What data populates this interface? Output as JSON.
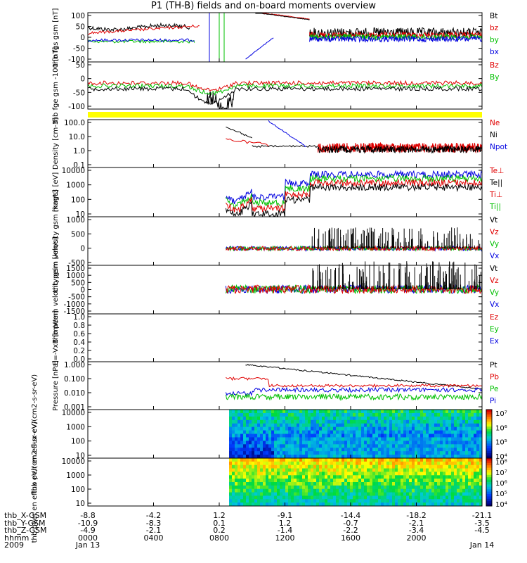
{
  "title": "P1 (TH-B) fields and on-board moments overview",
  "colors": {
    "black": "#000000",
    "red": "#e00000",
    "green": "#00c000",
    "blue": "#0000e0",
    "yellow": "#ffff00"
  },
  "x_axis": {
    "time_labels": [
      "0000",
      "0400",
      "0800",
      "1200",
      "1600",
      "2000",
      ""
    ],
    "date_labels": [
      "Jan 13",
      "",
      "",
      "",
      "",
      "",
      "Jan 14"
    ],
    "year": "2009",
    "row_labels": [
      "thb_X-GSM",
      "thb_Y-GSM",
      "thb_Z-GSM",
      "hhmm",
      "2009"
    ],
    "ephemeris": [
      [
        "-8.8",
        "-4.2",
        "1.2",
        "-9.1",
        "-14.4",
        "-18.2",
        "-21.1"
      ],
      [
        "-10.9",
        "-8.3",
        "0.1",
        "1.2",
        "-0.7",
        "-2.1",
        "-3.5"
      ],
      [
        "-4.9",
        "-2.1",
        "0.2",
        "-1.4",
        "-2.2",
        "-3.4",
        "-4.5"
      ]
    ]
  },
  "chart_data": [
    {
      "type": "line",
      "ylabel": "thb fgs gsm [nT]",
      "ylim": [
        -100,
        100
      ],
      "ytick_labels": [
        "100",
        "50",
        "0",
        "-50",
        "-100"
      ],
      "legend": [
        "Bt",
        "bz",
        "by",
        "bx"
      ]
    },
    {
      "type": "line",
      "ylabel": "thb fge gsm -100 [nT]",
      "ylim": [
        -130,
        50
      ],
      "ytick_labels": [
        "50",
        "0",
        "-50",
        "-100"
      ],
      "legend": [
        "Bz",
        "By"
      ]
    },
    {
      "type": "line",
      "ylabel": "Density [cm-3]",
      "log_scale": true,
      "ytick_labels": [
        "100.0",
        "10.0",
        "1.0",
        "0.1"
      ],
      "legend": [
        "Ne",
        "Ni",
        "Npot"
      ]
    },
    {
      "type": "line",
      "ylabel": "magt3 [eV]",
      "log_scale": true,
      "ytick_labels": [
        "10000",
        "1000",
        "100",
        "10"
      ],
      "legend": [
        "Te⊥",
        "Te||",
        "Ti⊥",
        "Ti||"
      ]
    },
    {
      "type": "line",
      "ylabel": "thb peim velocity gsm [km/s]",
      "ylim": [
        -500,
        1000
      ],
      "ytick_labels": [
        "1000",
        "500",
        "0",
        "-500"
      ],
      "legend": [
        "Vt",
        "Vz",
        "Vy",
        "Vx"
      ]
    },
    {
      "type": "line",
      "ylabel": "thb peem velocity gsm [km/s]",
      "ylim": [
        -1500,
        1500
      ],
      "ytick_labels": [
        "1500",
        "1000",
        "500",
        "0",
        "-500",
        "-1000",
        "-1500"
      ],
      "legend": [
        "Vt",
        "Vz",
        "Vy",
        "Vx"
      ]
    },
    {
      "type": "line",
      "ylabel": "E=-VxB [mV/m]",
      "ylim": [
        0,
        1
      ],
      "ytick_labels": [
        "1.0",
        "0.8",
        "0.6",
        "0.4",
        "0.2",
        "0.0"
      ],
      "legend": [
        "Ez",
        "Ey",
        "Ex"
      ]
    },
    {
      "type": "line",
      "ylabel": "Pressure [nPa]",
      "log_scale": true,
      "ytick_labels": [
        "1.000",
        "0.100",
        "0.010",
        "0.001"
      ],
      "legend": [
        "Pt",
        "Pb",
        "Pe",
        "Pi"
      ]
    },
    {
      "type": "heatmap",
      "ylabel": "thb peir en eflux eV/(cm2-s-sr-eV)",
      "log_scale": true,
      "ytick_labels": [
        "10000",
        "1000",
        "100",
        "10"
      ],
      "colorbar_labels": [
        "10⁷",
        "10⁶",
        "10⁵",
        "10⁴"
      ]
    },
    {
      "type": "heatmap",
      "ylabel": "thb peer en eflux eV/(cm2-s-sr-eV)",
      "log_scale": true,
      "ytick_labels": [
        "10000",
        "1000",
        "100",
        "10"
      ],
      "colorbar_labels": [
        "10⁸",
        "10⁷",
        "10⁶",
        "10⁵",
        "10⁴"
      ]
    }
  ]
}
